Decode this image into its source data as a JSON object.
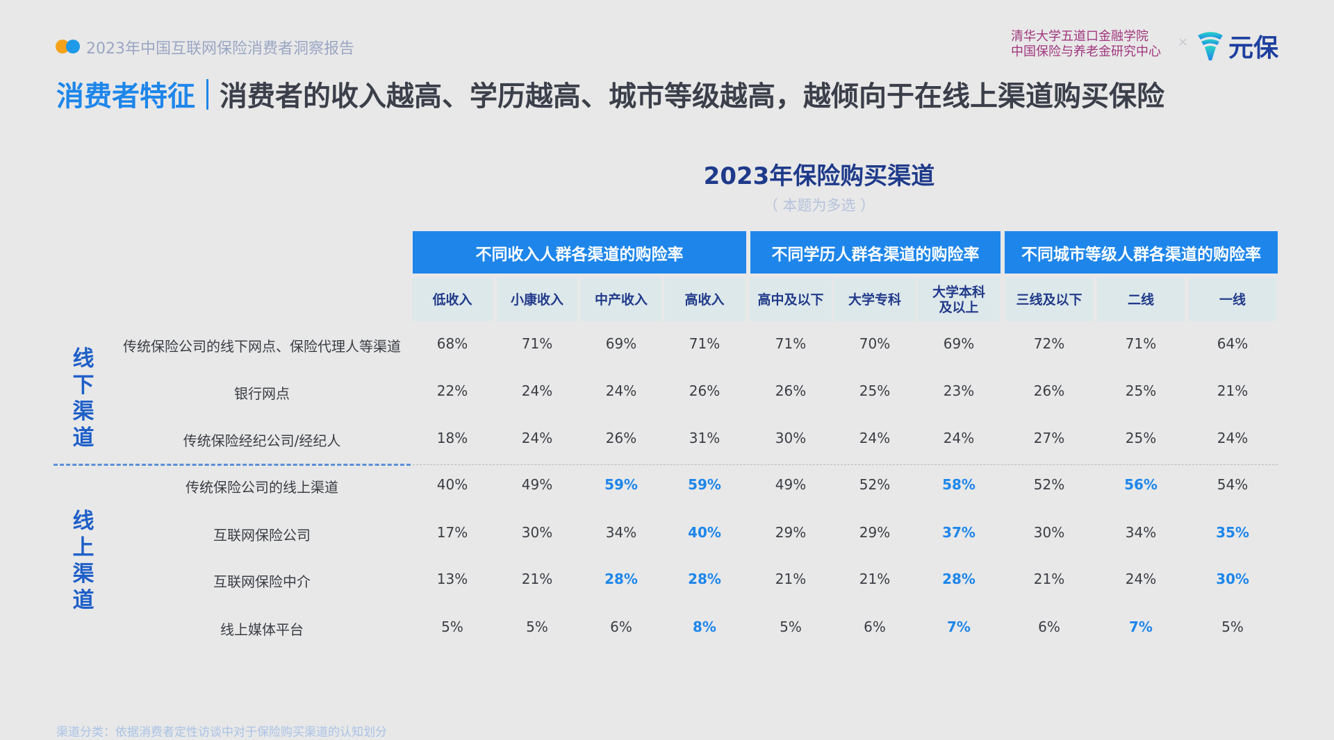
{
  "header": {
    "report_title": "2023年中国互联网保险消费者洞察报告",
    "title_highlight": "消费者特征",
    "title_main": "消费者的收入越高、学历越高、城市等级越高，越倾向于在线上渠道购买保险",
    "org_line1": "清华大学五道口金融学院",
    "org_line2": "中国保险与养老金研究中心",
    "cross": "×",
    "brand": "元保",
    "colors": {
      "accent": "#1e86ea",
      "dot1": "#f5a21b",
      "dot2": "#1e9ae8",
      "highlight": "#1e86ea"
    }
  },
  "table": {
    "title": "2023年保险购买渠道",
    "subtitle": "（ 本题为多选 ）",
    "groups": [
      "不同收入人群各渠道的购险率",
      "不同学历人群各渠道的购险率",
      "不同城市等级人群各渠道的购险率"
    ],
    "columns": [
      "低收入",
      "小康收入",
      "中产收入",
      "高收入",
      "高中及以下",
      "大学专科",
      "大学本科及以上",
      "三线及以下",
      "二线",
      "一线"
    ],
    "sections": [
      {
        "label": "线下渠道"
      },
      {
        "label": "线上渠道"
      }
    ],
    "rows": [
      {
        "label": "传统保险公司的线下网点、保险代理人等渠道",
        "values": [
          "68%",
          "71%",
          "69%",
          "71%",
          "71%",
          "70%",
          "69%",
          "72%",
          "71%",
          "64%"
        ],
        "highlight": []
      },
      {
        "label": "银行网点",
        "values": [
          "22%",
          "24%",
          "24%",
          "26%",
          "26%",
          "25%",
          "23%",
          "26%",
          "25%",
          "21%"
        ],
        "highlight": []
      },
      {
        "label": "传统保险经纪公司/经纪人",
        "values": [
          "18%",
          "24%",
          "26%",
          "31%",
          "30%",
          "24%",
          "24%",
          "27%",
          "25%",
          "24%"
        ],
        "highlight": []
      },
      {
        "label": "传统保险公司的线上渠道",
        "values": [
          "40%",
          "49%",
          "59%",
          "59%",
          "49%",
          "52%",
          "58%",
          "52%",
          "56%",
          "54%"
        ],
        "highlight": [
          2,
          3,
          6,
          8
        ]
      },
      {
        "label": "互联网保险公司",
        "values": [
          "17%",
          "30%",
          "34%",
          "40%",
          "29%",
          "29%",
          "37%",
          "30%",
          "34%",
          "35%"
        ],
        "highlight": [
          3,
          6,
          9
        ]
      },
      {
        "label": "互联网保险中介",
        "values": [
          "13%",
          "21%",
          "28%",
          "28%",
          "21%",
          "21%",
          "28%",
          "21%",
          "24%",
          "30%"
        ],
        "highlight": [
          2,
          3,
          6,
          9
        ]
      },
      {
        "label": "线上媒体平台",
        "values": [
          "5%",
          "5%",
          "6%",
          "8%",
          "5%",
          "6%",
          "7%",
          "6%",
          "7%",
          "5%"
        ],
        "highlight": [
          3,
          6,
          8
        ]
      }
    ]
  },
  "footnote": "渠道分类：依据消费者定性访谈中对于保险购买渠道的认知划分"
}
